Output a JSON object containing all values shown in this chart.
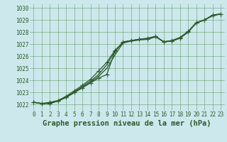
{
  "title": "Graphe pression niveau de la mer (hPa)",
  "bg_color": "#cce8ec",
  "grid_color": "#4d8c4d",
  "line_color": "#2d5a2d",
  "xlim": [
    -0.5,
    23.5
  ],
  "ylim": [
    1021.5,
    1030.3
  ],
  "xticks": [
    0,
    1,
    2,
    3,
    4,
    5,
    6,
    7,
    8,
    9,
    10,
    11,
    12,
    13,
    14,
    15,
    16,
    17,
    18,
    19,
    20,
    21,
    22,
    23
  ],
  "yticks": [
    1022,
    1023,
    1024,
    1025,
    1026,
    1027,
    1028,
    1029,
    1030
  ],
  "series": [
    [
      1022.2,
      1022.1,
      1022.1,
      1022.3,
      1022.6,
      1023.0,
      1023.4,
      1023.8,
      1024.2,
      1024.5,
      1026.4,
      1027.2,
      1027.3,
      1027.4,
      1027.4,
      1027.65,
      1027.2,
      1027.25,
      1027.5,
      1028.0,
      1028.75,
      1029.0,
      1029.35,
      1029.5
    ],
    [
      1022.2,
      1022.1,
      1022.1,
      1022.3,
      1022.6,
      1023.0,
      1023.4,
      1023.85,
      1024.35,
      1025.0,
      1026.1,
      1027.1,
      1027.25,
      1027.35,
      1027.4,
      1027.6,
      1027.2,
      1027.25,
      1027.5,
      1028.0,
      1028.75,
      1029.0,
      1029.35,
      1029.5
    ],
    [
      1022.2,
      1022.1,
      1022.15,
      1022.3,
      1022.65,
      1023.05,
      1023.5,
      1023.95,
      1024.5,
      1025.3,
      1026.4,
      1027.15,
      1027.3,
      1027.4,
      1027.45,
      1027.65,
      1027.2,
      1027.3,
      1027.55,
      1028.05,
      1028.78,
      1029.0,
      1029.4,
      1029.5
    ],
    [
      1022.2,
      1022.1,
      1022.2,
      1022.35,
      1022.7,
      1023.15,
      1023.6,
      1024.1,
      1024.8,
      1025.5,
      1026.5,
      1027.15,
      1027.3,
      1027.4,
      1027.5,
      1027.65,
      1027.2,
      1027.3,
      1027.55,
      1028.05,
      1028.78,
      1029.0,
      1029.4,
      1029.5
    ]
  ],
  "marker_indices_s0": [
    0,
    1,
    2,
    3,
    4,
    5,
    6,
    7,
    8,
    9,
    10,
    11,
    12,
    13,
    14,
    15,
    16,
    17,
    18,
    19,
    20,
    21,
    22,
    23
  ],
  "marker_indices_slast": [
    0,
    1,
    2,
    3,
    4,
    5,
    6,
    7,
    8,
    9,
    10,
    11,
    12,
    13,
    14,
    15,
    16,
    17,
    18,
    19,
    20,
    21,
    22,
    23
  ],
  "marker_style": "+",
  "marker_size": 4,
  "linewidth": 0.9,
  "font_color": "#2d5a2d",
  "xlabel_fontsize": 7.5,
  "tick_fontsize": 5.5
}
